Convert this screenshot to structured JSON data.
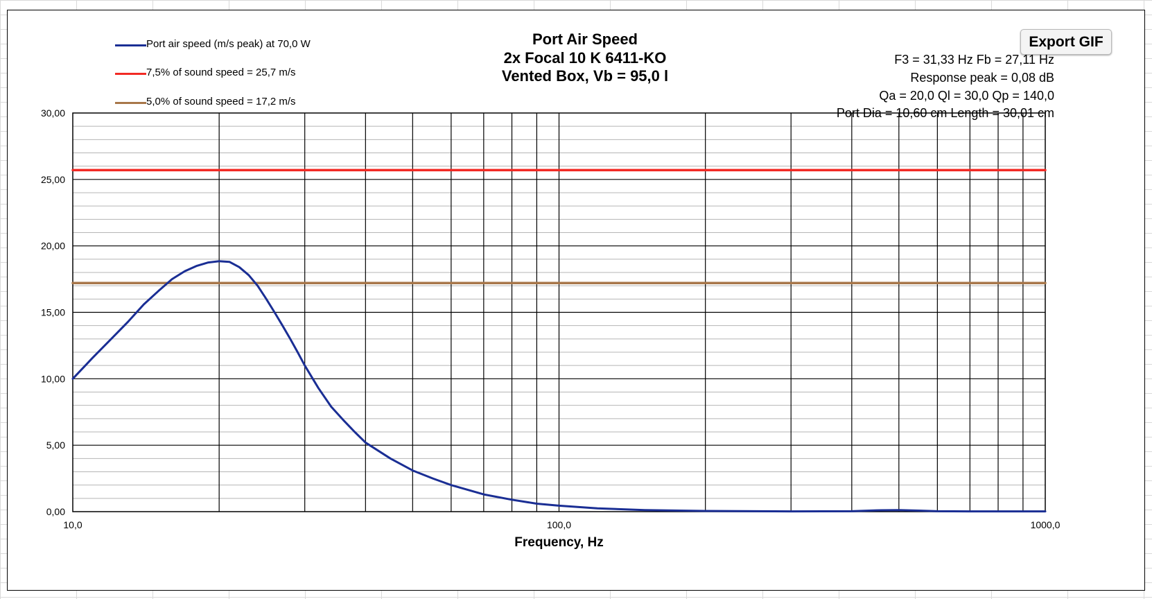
{
  "chart_data": {
    "type": "line",
    "title": [
      "Port Air Speed",
      "2x Focal 10 K 6411-KO",
      "Vented Box, Vb = 95,0 l"
    ],
    "xlabel": "Frequency, Hz",
    "ylabel": "",
    "x_scale": "log",
    "xlim": [
      10,
      1000
    ],
    "ylim": [
      0,
      30
    ],
    "x_tick_labels": [
      "10,0",
      "100,0",
      "1000,0"
    ],
    "y_tick_labels": [
      "0,00",
      "5,00",
      "10,00",
      "15,00",
      "20,00",
      "25,00",
      "30,00"
    ],
    "grid": true,
    "legend_position": "top-left",
    "series": [
      {
        "name": "Port air speed (m/s peak) at 70,0 W",
        "color": "#1a2e94",
        "x": [
          10,
          11,
          12,
          13,
          14,
          15,
          16,
          17,
          18,
          19,
          20,
          21,
          22,
          23,
          24,
          25,
          26,
          27,
          28,
          29,
          30,
          32,
          34,
          36,
          38,
          40,
          45,
          50,
          55,
          60,
          70,
          80,
          90,
          100,
          120,
          150,
          200,
          300,
          400,
          450,
          500,
          550,
          600,
          700,
          1000
        ],
        "y": [
          10.0,
          11.6,
          13.0,
          14.3,
          15.6,
          16.6,
          17.5,
          18.1,
          18.5,
          18.75,
          18.85,
          18.8,
          18.4,
          17.8,
          17.0,
          16.0,
          15.0,
          14.0,
          13.0,
          12.0,
          11.0,
          9.3,
          7.9,
          6.9,
          6.0,
          5.2,
          4.0,
          3.1,
          2.5,
          2.0,
          1.3,
          0.9,
          0.6,
          0.45,
          0.25,
          0.12,
          0.05,
          0.02,
          0.03,
          0.1,
          0.12,
          0.08,
          0.03,
          0.02,
          0.02
        ]
      },
      {
        "name": "7,5% of sound speed = 25,7 m/s",
        "color": "#f22a24",
        "x": [
          10,
          1000
        ],
        "y": [
          25.7,
          25.7
        ]
      },
      {
        "name": "5,0% of sound speed = 17,2 m/s",
        "color": "#a8774a",
        "x": [
          10,
          1000
        ],
        "y": [
          17.2,
          17.2
        ]
      }
    ]
  },
  "info": {
    "line1": "F3 = 31,33 Hz  Fb = 27,11 Hz",
    "line2": "Response peak = 0,08 dB",
    "line3": "Qa = 20,0  Ql = 30,0  Qp = 140,0",
    "line4": "Port Dia = 10,60 cm  Length = 30,01 cm"
  },
  "toolbar": {
    "export_label": "Export GIF"
  }
}
